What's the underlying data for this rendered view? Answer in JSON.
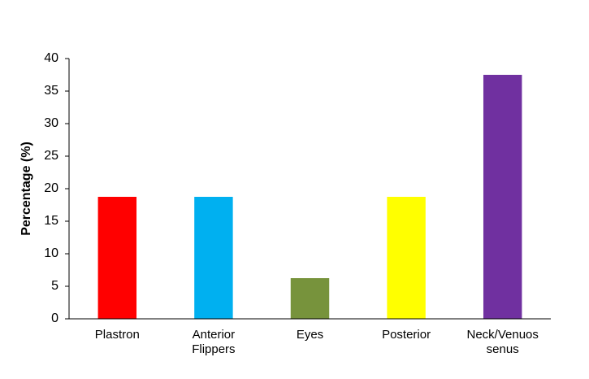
{
  "chart_data": {
    "type": "bar",
    "y_label": "Percentage (%)",
    "categories": [
      "Plastron",
      "Anterior Flippers",
      "Eyes",
      "Posterior",
      "Neck/Venuos senus"
    ],
    "values": [
      18.75,
      18.75,
      6.25,
      18.75,
      37.5
    ],
    "colors": [
      "#ff0000",
      "#00b0f0",
      "#77933c",
      "#ffff00",
      "#7030a0"
    ],
    "ylim": [
      0,
      40
    ],
    "yticks": [
      0,
      5,
      10,
      15,
      20,
      25,
      30,
      35,
      40
    ],
    "grid": false
  }
}
